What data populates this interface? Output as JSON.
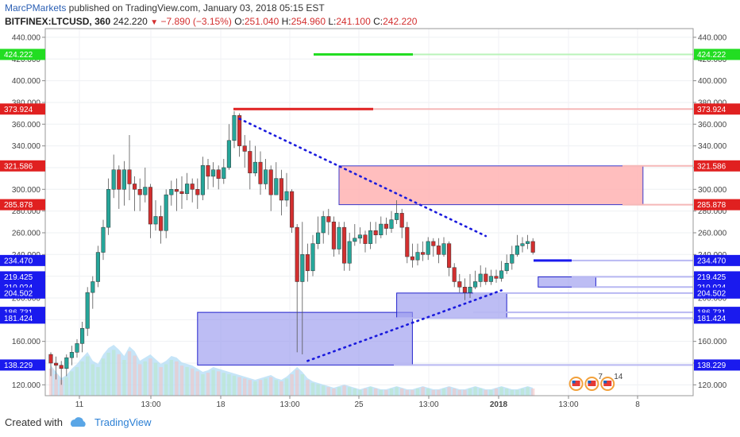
{
  "header": {
    "author": "MarcPMarkets",
    "text": " published on TradingView.com, January 03, 2018 05:15 EST"
  },
  "info": {
    "symbol": "BITFINEX:LTCUSD, 360",
    "last": "242.220",
    "change": "−7.890 (−3.15%)",
    "open_label": "O:",
    "open": "251.040",
    "high_label": "H:",
    "high": "254.960",
    "low_label": "L:",
    "low": "241.100",
    "close_label": "C:",
    "close": "242.220"
  },
  "footer": {
    "created_with": "Created with",
    "brand": "TradingView"
  },
  "colors": {
    "up": "#26a69a",
    "down": "#d32f2f",
    "demand_zone": "#9999ee",
    "supply_zone": "#ffb3b3",
    "blue_tag": "#1a1aee",
    "red_tag": "#e02020",
    "green_tag": "#22dd22"
  },
  "chart_data": {
    "type": "candlestick",
    "y_range": [
      110,
      448
    ],
    "y_ticks": [
      "120.000",
      "140.000",
      "160.000",
      "180.000",
      "200.000",
      "220.000",
      "240.000",
      "260.000",
      "280.000",
      "300.000",
      "320.000",
      "340.000",
      "360.000",
      "380.000",
      "400.000",
      "420.000",
      "440.000"
    ],
    "y_tick_values": [
      120,
      140,
      160,
      180,
      200,
      220,
      240,
      260,
      280,
      300,
      320,
      340,
      360,
      380,
      400,
      420,
      440
    ],
    "x_labels": [
      "11",
      "13:00",
      "18",
      "13:00",
      "25",
      "13:00",
      "2018",
      "13:00",
      "8"
    ],
    "price_levels": [
      {
        "label": "424.222",
        "value": 424.222,
        "color": "#22dd22"
      },
      {
        "label": "373.924",
        "value": 373.924,
        "color": "#e02020"
      },
      {
        "label": "321.586",
        "value": 321.586,
        "color": "#e02020"
      },
      {
        "label": "285.878",
        "value": 285.878,
        "color": "#e02020"
      },
      {
        "label": "234.470",
        "value": 234.47,
        "color": "#1a1aee"
      },
      {
        "label": "219.425",
        "value": 219.425,
        "color": "#1a1aee"
      },
      {
        "label": "210.024",
        "value": 210.024,
        "color": "#1a1aee"
      },
      {
        "label": "204.502",
        "value": 204.502,
        "color": "#1a1aee"
      },
      {
        "label": "186.731",
        "value": 186.731,
        "color": "#1a1aee"
      },
      {
        "label": "181.424",
        "value": 181.424,
        "color": "#1a1aee"
      },
      {
        "label": "138.229",
        "value": 138.229,
        "color": "#1a1aee"
      }
    ],
    "zones": [
      {
        "kind": "supply",
        "top": 321.586,
        "bottom": 285.878,
        "start": 55,
        "end": 113
      },
      {
        "kind": "demand",
        "top": 186.731,
        "bottom": 138.229,
        "start": 28,
        "end": 69
      },
      {
        "kind": "demand",
        "top": 204.502,
        "bottom": 181.424,
        "start": 66,
        "end": 87
      },
      {
        "kind": "demand",
        "top": 219.425,
        "bottom": 210.024,
        "start": 93,
        "end": 104
      }
    ],
    "trendlines": [
      {
        "from": [
          36,
          365
        ],
        "to": [
          83,
          257
        ]
      },
      {
        "from": [
          49,
          142
        ],
        "to": [
          86,
          207
        ]
      }
    ],
    "candles": [
      [
        148,
        140,
        150,
        128
      ],
      [
        140,
        138,
        146,
        125
      ],
      [
        138,
        135,
        142,
        120
      ],
      [
        135,
        145,
        148,
        128
      ],
      [
        145,
        150,
        156,
        138
      ],
      [
        150,
        158,
        162,
        145
      ],
      [
        158,
        172,
        178,
        150
      ],
      [
        172,
        205,
        210,
        165
      ],
      [
        205,
        215,
        220,
        190
      ],
      [
        215,
        242,
        248,
        210
      ],
      [
        242,
        265,
        272,
        235
      ],
      [
        265,
        300,
        310,
        258
      ],
      [
        300,
        318,
        332,
        292
      ],
      [
        318,
        300,
        322,
        282
      ],
      [
        300,
        318,
        326,
        285
      ],
      [
        318,
        305,
        350,
        290
      ],
      [
        305,
        300,
        312,
        280
      ],
      [
        300,
        295,
        310,
        280
      ],
      [
        295,
        302,
        320,
        288
      ],
      [
        302,
        268,
        305,
        255
      ],
      [
        268,
        275,
        290,
        262
      ],
      [
        275,
        262,
        285,
        250
      ],
      [
        262,
        295,
        300,
        255
      ],
      [
        295,
        300,
        308,
        285
      ],
      [
        300,
        298,
        310,
        280
      ],
      [
        298,
        296,
        312,
        282
      ],
      [
        296,
        305,
        315,
        290
      ],
      [
        305,
        300,
        310,
        288
      ],
      [
        300,
        295,
        310,
        282
      ],
      [
        295,
        322,
        330,
        290
      ],
      [
        322,
        312,
        328,
        300
      ],
      [
        312,
        318,
        325,
        302
      ],
      [
        318,
        310,
        322,
        300
      ],
      [
        310,
        320,
        328,
        305
      ],
      [
        320,
        345,
        360,
        318
      ],
      [
        345,
        368,
        372,
        338
      ],
      [
        368,
        340,
        370,
        330
      ],
      [
        340,
        335,
        350,
        320
      ],
      [
        335,
        315,
        345,
        300
      ],
      [
        315,
        325,
        340,
        312
      ],
      [
        325,
        305,
        335,
        295
      ],
      [
        305,
        318,
        328,
        300
      ],
      [
        318,
        295,
        322,
        280
      ],
      [
        295,
        310,
        325,
        298
      ],
      [
        310,
        290,
        318,
        276
      ],
      [
        290,
        298,
        315,
        284
      ],
      [
        298,
        265,
        300,
        260
      ],
      [
        265,
        215,
        268,
        150
      ],
      [
        215,
        240,
        270,
        148
      ],
      [
        240,
        225,
        250,
        215
      ],
      [
        225,
        250,
        258,
        220
      ],
      [
        250,
        260,
        275,
        245
      ],
      [
        260,
        275,
        280,
        250
      ],
      [
        275,
        270,
        282,
        258
      ],
      [
        270,
        245,
        275,
        238
      ],
      [
        245,
        265,
        270,
        240
      ],
      [
        265,
        232,
        270,
        225
      ],
      [
        232,
        252,
        260,
        225
      ],
      [
        252,
        255,
        268,
        248
      ],
      [
        255,
        258,
        265,
        250
      ],
      [
        258,
        250,
        262,
        242
      ],
      [
        250,
        262,
        270,
        245
      ],
      [
        262,
        258,
        270,
        250
      ],
      [
        258,
        268,
        275,
        255
      ],
      [
        268,
        264,
        274,
        258
      ],
      [
        264,
        272,
        280,
        260
      ],
      [
        272,
        278,
        290,
        268
      ],
      [
        278,
        265,
        282,
        255
      ],
      [
        265,
        238,
        270,
        232
      ],
      [
        238,
        235,
        250,
        228
      ],
      [
        235,
        242,
        250,
        230
      ],
      [
        242,
        240,
        252,
        234
      ],
      [
        240,
        252,
        256,
        235
      ],
      [
        252,
        248,
        255,
        238
      ],
      [
        248,
        240,
        255,
        232
      ],
      [
        240,
        250,
        256,
        238
      ],
      [
        250,
        228,
        252,
        220
      ],
      [
        228,
        215,
        232,
        210
      ],
      [
        215,
        210,
        222,
        205
      ],
      [
        210,
        205,
        218,
        198
      ],
      [
        205,
        210,
        222,
        200
      ],
      [
        210,
        215,
        225,
        208
      ],
      [
        215,
        222,
        230,
        210
      ],
      [
        222,
        215,
        228,
        212
      ],
      [
        215,
        220,
        226,
        212
      ],
      [
        220,
        218,
        226,
        214
      ],
      [
        218,
        225,
        234,
        215
      ],
      [
        225,
        232,
        240,
        222
      ],
      [
        232,
        240,
        248,
        226
      ],
      [
        240,
        248,
        258,
        238
      ],
      [
        248,
        250,
        256,
        242
      ],
      [
        250,
        252,
        258,
        245
      ],
      [
        252,
        242,
        255,
        240
      ]
    ],
    "volumes": [
      38,
      30,
      22,
      26,
      34,
      40,
      48,
      55,
      44,
      40,
      52,
      60,
      64,
      58,
      50,
      62,
      56,
      44,
      48,
      52,
      46,
      40,
      44,
      50,
      48,
      42,
      40,
      38,
      34,
      30,
      32,
      36,
      34,
      32,
      30,
      28,
      26,
      24,
      22,
      20,
      22,
      24,
      26,
      22,
      20,
      24,
      30,
      36,
      30,
      22,
      18,
      16,
      14,
      12,
      10,
      12,
      14,
      12,
      10,
      8,
      10,
      12,
      10,
      8,
      8,
      10,
      12,
      10,
      8,
      8,
      10,
      12,
      10,
      8,
      8,
      10,
      12,
      10,
      8,
      8,
      10,
      12,
      10,
      8,
      8,
      10,
      12,
      10,
      8,
      8,
      10,
      12,
      10
    ],
    "event_icons": [
      {
        "index": 101,
        "count": ""
      },
      {
        "index": 104,
        "count": "7"
      },
      {
        "index": 107,
        "count": "14"
      }
    ]
  }
}
